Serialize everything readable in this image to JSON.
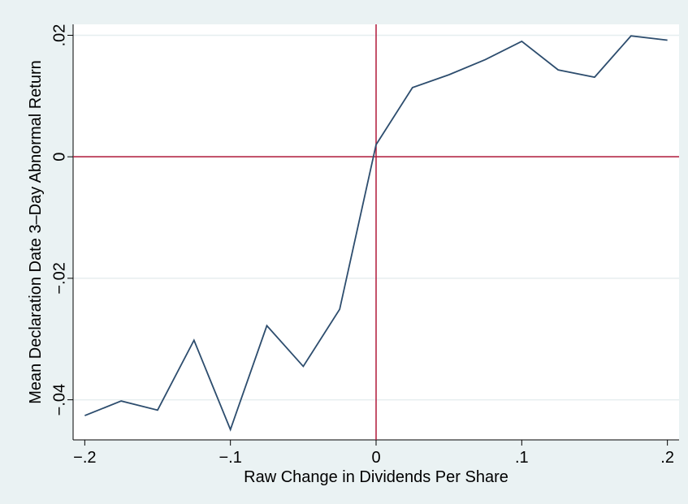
{
  "chart_data": {
    "type": "line",
    "x_label": "Raw Change in Dividends Per Share",
    "y_label": "Mean Declaration Date 3–Day Abnormal Return",
    "x": [
      -0.2,
      -0.175,
      -0.15,
      -0.125,
      -0.1,
      -0.075,
      -0.05,
      -0.025,
      0,
      0.025,
      0.05,
      0.075,
      0.1,
      0.125,
      0.15,
      0.175,
      0.2
    ],
    "series": [
      {
        "color": "#2d4d6e",
        "values": [
          -0.0426,
          -0.0402,
          -0.0417,
          -0.0302,
          -0.0449,
          -0.0278,
          -0.0345,
          -0.0251,
          0.002,
          0.0114,
          0.0135,
          0.016,
          0.019,
          0.0143,
          0.0131,
          0.0199,
          0.0192
        ]
      }
    ],
    "xlim": [
      -0.208,
      0.208
    ],
    "ylim": [
      -0.0466,
      0.0218
    ],
    "xticks": [
      {
        "value": -0.2,
        "label": "−.2"
      },
      {
        "value": -0.1,
        "label": "−.1"
      },
      0,
      {
        "value": 0.1,
        "label": ".1"
      },
      {
        "value": 0.2,
        "label": ".2"
      }
    ],
    "yticks": [
      {
        "value": -0.04,
        "label": "−.04"
      },
      {
        "value": -0.02,
        "label": "−.02"
      },
      0,
      {
        "value": 0.02,
        "label": ".02"
      }
    ],
    "grid": true,
    "reference_lines": {
      "x": 0,
      "y": 0,
      "color": "#b0183a"
    }
  }
}
